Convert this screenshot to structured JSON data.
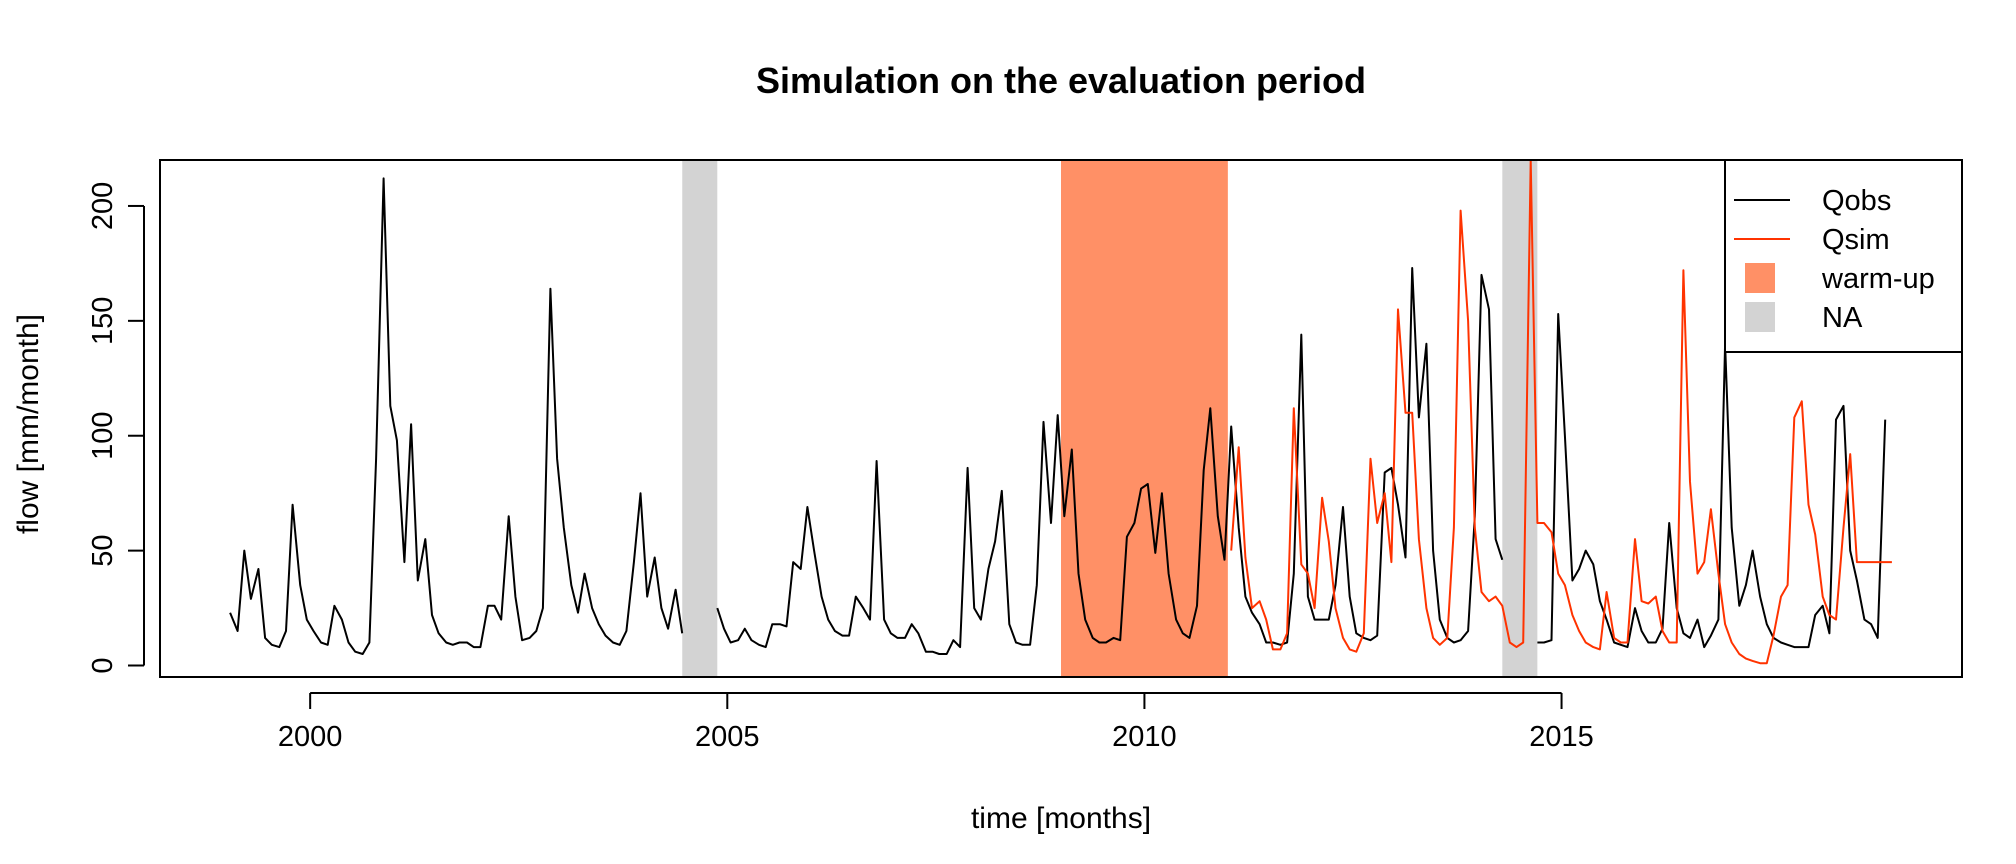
{
  "colors": {
    "qobs": "#000000",
    "qsim": "#FF3300",
    "warmup": "#FF9066",
    "na": "#D3D3D3"
  },
  "chart_data": {
    "type": "line",
    "title": "Simulation on the evaluation period",
    "xlabel": "time [months]",
    "ylabel": "flow [mm/month]",
    "xlim": [
      1998.2,
      2019.8
    ],
    "ylim": [
      -5,
      220
    ],
    "x_ticks": [
      2000,
      2005,
      2010,
      2015
    ],
    "y_ticks": [
      0,
      50,
      100,
      150,
      200
    ],
    "grid": false,
    "legend_position": "top-right",
    "legend": [
      {
        "label": "Qobs",
        "kind": "line",
        "color": "#000000"
      },
      {
        "label": "Qsim",
        "kind": "line",
        "color": "#FF3300"
      },
      {
        "label": "warm-up",
        "kind": "box",
        "color": "#FF9066"
      },
      {
        "label": "NA",
        "kind": "box",
        "color": "#D3D3D3"
      }
    ],
    "shaded_periods": [
      {
        "kind": "na",
        "start": 2004.46,
        "end": 2004.88
      },
      {
        "kind": "warmup",
        "start": 2009.0,
        "end": 2011.0
      },
      {
        "kind": "na",
        "start": 2014.29,
        "end": 2014.71
      }
    ],
    "series": [
      {
        "name": "Qobs",
        "color": "#000000",
        "segments": [
          {
            "x": [
              1999.04,
              1999.13,
              1999.21,
              1999.29,
              1999.38,
              1999.46,
              1999.54,
              1999.63,
              1999.71,
              1999.79,
              1999.88,
              1999.96,
              2000.04,
              2000.13,
              2000.21,
              2000.29,
              2000.38,
              2000.46,
              2000.54,
              2000.63,
              2000.71,
              2000.79,
              2000.88,
              2000.96,
              2001.04,
              2001.13,
              2001.21,
              2001.29,
              2001.38,
              2001.46,
              2001.54,
              2001.63,
              2001.71,
              2001.79,
              2001.88,
              2001.96,
              2002.04,
              2002.13,
              2002.21,
              2002.29,
              2002.38,
              2002.46,
              2002.54,
              2002.63,
              2002.71,
              2002.79,
              2002.88,
              2002.96,
              2003.04,
              2003.13,
              2003.21,
              2003.29,
              2003.38,
              2003.46,
              2003.54,
              2003.63,
              2003.71,
              2003.79,
              2003.88,
              2003.96,
              2004.04,
              2004.13,
              2004.21,
              2004.29,
              2004.38,
              2004.46
            ],
            "y": [
              23,
              15,
              50,
              29,
              42,
              12,
              9,
              8,
              15,
              70,
              35,
              20,
              15,
              10,
              9,
              26,
              20,
              10,
              6,
              5,
              10,
              90,
              212,
              113,
              98,
              45,
              105,
              37,
              55,
              22,
              14,
              10,
              9,
              10,
              10,
              8,
              8,
              26,
              26,
              20,
              65,
              30,
              11,
              12,
              15,
              25,
              164,
              90,
              60,
              35,
              23,
              40,
              25,
              18,
              13,
              10,
              9,
              15,
              45,
              75,
              30,
              47,
              25,
              16,
              33,
              14
            ]
          },
          {
            "x": [
              2004.88,
              2004.96,
              2005.04,
              2005.13,
              2005.21,
              2005.29,
              2005.38,
              2005.46,
              2005.54,
              2005.63,
              2005.71,
              2005.79,
              2005.88,
              2005.96,
              2006.04,
              2006.13,
              2006.21,
              2006.29,
              2006.38,
              2006.46,
              2006.54,
              2006.63,
              2006.71,
              2006.79,
              2006.88,
              2006.96,
              2007.04,
              2007.13,
              2007.21,
              2007.29,
              2007.38,
              2007.46,
              2007.54,
              2007.63,
              2007.71,
              2007.79,
              2007.88,
              2007.96,
              2008.04,
              2008.13,
              2008.21,
              2008.29,
              2008.38,
              2008.46,
              2008.54,
              2008.63,
              2008.71,
              2008.79,
              2008.88,
              2008.96,
              2009.04,
              2009.13,
              2009.21,
              2009.29,
              2009.38,
              2009.46,
              2009.54,
              2009.63,
              2009.71,
              2009.79,
              2009.88,
              2009.96,
              2010.04,
              2010.13,
              2010.21,
              2010.29,
              2010.38,
              2010.46,
              2010.54,
              2010.63,
              2010.71,
              2010.79,
              2010.88,
              2010.96,
              2011.04,
              2011.13,
              2011.21,
              2011.29,
              2011.38,
              2011.46,
              2011.54,
              2011.63,
              2011.71,
              2011.79,
              2011.88,
              2011.96,
              2012.04,
              2012.13,
              2012.21,
              2012.29,
              2012.38,
              2012.46,
              2012.54,
              2012.63,
              2012.71,
              2012.79,
              2012.88,
              2012.96,
              2013.04,
              2013.13,
              2013.21,
              2013.29,
              2013.38,
              2013.46,
              2013.54,
              2013.63,
              2013.71,
              2013.79,
              2013.88,
              2013.96,
              2014.04,
              2014.13,
              2014.21,
              2014.29
            ],
            "y": [
              25,
              16,
              10,
              11,
              16,
              11,
              9,
              8,
              18,
              18,
              17,
              45,
              42,
              69,
              50,
              30,
              20,
              15,
              13,
              13,
              30,
              25,
              20,
              89,
              20,
              14,
              12,
              12,
              18,
              14,
              6,
              6,
              5,
              5,
              11,
              8,
              86,
              25,
              20,
              42,
              54,
              76,
              18,
              10,
              9,
              9,
              35,
              106,
              62,
              109,
              65,
              94,
              40,
              20,
              12,
              10,
              10,
              12,
              11,
              56,
              62,
              77,
              79,
              49,
              75,
              40,
              20,
              14,
              12,
              26,
              85,
              112,
              65,
              46,
              104,
              60,
              30,
              23,
              18,
              10,
              10,
              9,
              10,
              40,
              144,
              30,
              20,
              20,
              20,
              35,
              69,
              30,
              14,
              12,
              11,
              13,
              84,
              86,
              70,
              47,
              173,
              108,
              140,
              50,
              20,
              12,
              10,
              11,
              15,
              65,
              170,
              155,
              55,
              46
            ]
          },
          {
            "x": [
              2014.71,
              2014.79,
              2014.88,
              2014.96,
              2015.04,
              2015.13,
              2015.21,
              2015.29,
              2015.38,
              2015.46,
              2015.54,
              2015.63,
              2015.71,
              2015.79,
              2015.88,
              2015.96,
              2016.04,
              2016.13,
              2016.21,
              2016.29,
              2016.38,
              2016.46,
              2016.54,
              2016.63,
              2016.71,
              2016.79,
              2016.88,
              2016.96,
              2017.04,
              2017.13,
              2017.21,
              2017.29,
              2017.38,
              2017.46,
              2017.54,
              2017.63,
              2017.71,
              2017.79,
              2017.88,
              2017.96,
              2018.04,
              2018.13,
              2018.21,
              2018.29,
              2018.38,
              2018.46,
              2018.54,
              2018.63,
              2018.71,
              2018.79,
              2018.88
            ],
            "y": [
              10,
              10,
              11,
              153,
              100,
              37,
              42,
              50,
              44,
              28,
              20,
              10,
              9,
              8,
              25,
              15,
              10,
              10,
              16,
              62,
              25,
              14,
              12,
              20,
              8,
              13,
              20,
              140,
              60,
              26,
              35,
              50,
              30,
              18,
              12,
              10,
              9,
              8,
              8,
              8,
              22,
              26,
              14,
              107,
              113,
              50,
              37,
              20,
              18,
              12,
              107
            ]
          }
        ]
      },
      {
        "name": "Qsim",
        "color": "#FF3300",
        "segments": [
          {
            "x": [
              2011.04,
              2011.13,
              2011.21,
              2011.29,
              2011.38,
              2011.46,
              2011.54,
              2011.63,
              2011.71,
              2011.79,
              2011.88,
              2011.96,
              2012.04,
              2012.13,
              2012.21,
              2012.29,
              2012.38,
              2012.46,
              2012.54,
              2012.63,
              2012.71,
              2012.79,
              2012.88,
              2012.96,
              2013.04,
              2013.13,
              2013.21,
              2013.29,
              2013.38,
              2013.46,
              2013.54,
              2013.63,
              2013.71,
              2013.79,
              2013.88,
              2013.96,
              2014.04,
              2014.13,
              2014.21,
              2014.29,
              2014.38,
              2014.46,
              2014.54,
              2014.63,
              2014.71,
              2014.79,
              2014.88,
              2014.96,
              2015.04,
              2015.13,
              2015.21,
              2015.29,
              2015.38,
              2015.46,
              2015.54,
              2015.63,
              2015.71,
              2015.79,
              2015.88,
              2015.96,
              2016.04,
              2016.13,
              2016.21,
              2016.29,
              2016.38,
              2016.46,
              2016.54,
              2016.63,
              2016.71,
              2016.79,
              2016.88,
              2016.96,
              2017.04,
              2017.13,
              2017.21,
              2017.29,
              2017.38,
              2017.46,
              2017.54,
              2017.63,
              2017.71,
              2017.79,
              2017.88,
              2017.96,
              2018.04,
              2018.13,
              2018.21,
              2018.29,
              2018.38,
              2018.46,
              2018.54,
              2018.63,
              2018.71,
              2018.79,
              2018.88,
              2018.96
            ],
            "y": [
              50,
              95,
              47,
              25,
              28,
              20,
              7,
              7,
              14,
              112,
              44,
              40,
              25,
              73,
              54,
              25,
              12,
              7,
              6,
              14,
              90,
              62,
              75,
              45,
              155,
              110,
              110,
              55,
              25,
              12,
              9,
              12,
              60,
              198,
              150,
              60,
              32,
              28,
              30,
              26,
              10,
              8,
              10,
              225,
              62,
              62,
              58,
              40,
              35,
              22,
              15,
              10,
              8,
              7,
              32,
              12,
              10,
              10,
              55,
              28,
              27,
              30,
              15,
              10,
              10,
              172,
              80,
              40,
              45,
              68,
              40,
              18,
              10,
              5,
              3,
              2,
              1,
              1,
              13,
              30,
              35,
              108,
              115,
              70,
              57,
              30,
              22,
              20,
              60,
              92,
              45,
              45,
              45,
              45,
              45,
              45
            ]
          }
        ]
      }
    ]
  }
}
